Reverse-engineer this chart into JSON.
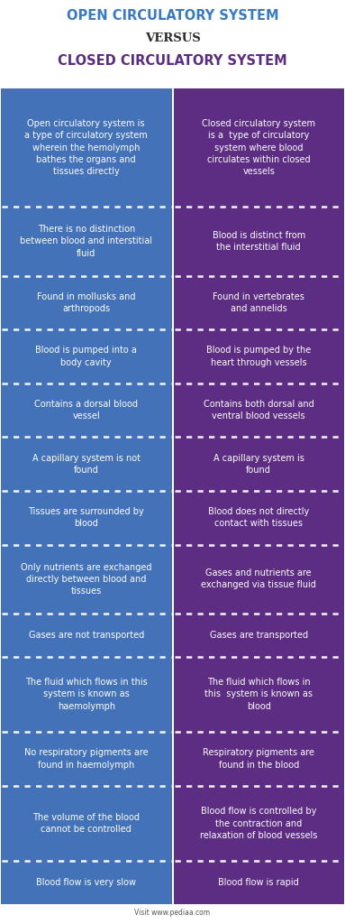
{
  "title_line1": "OPEN CIRCULATORY SYSTEM",
  "title_line2": "VERSUS",
  "title_line3": "CLOSED CIRCULATORY SYSTEM",
  "title_color1": "#3a7abf",
  "title_color2": "#2c2c2c",
  "title_color3": "#5b2d7e",
  "left_color": "#4472b8",
  "right_color": "#5c2d82",
  "text_color": "#ffffff",
  "background_color": "#ffffff",
  "footer_text": "Visit www.pediaa.com",
  "rows": [
    {
      "left": "Open circulatory system is\na type of circulatory system\nwherein the hemolymph\nbathes the organs and\ntissues directly",
      "right": "Closed circulatory system\nis a  type of circulatory\nsystem where blood\ncirculates within closed\nvessels"
    },
    {
      "left": "There is no distinction\nbetween blood and interstitial\nfluid",
      "right": "Blood is distinct from\nthe interstitial fluid"
    },
    {
      "left": "Found in mollusks and\narthropods",
      "right": "Found in vertebrates\nand annelids"
    },
    {
      "left": "Blood is pumped into a\nbody cavity",
      "right": "Blood is pumped by the\nheart through vessels"
    },
    {
      "left": "Contains a dorsal blood\nvessel",
      "right": "Contains both dorsal and\nventral blood vessels"
    },
    {
      "left": "A capillary system is not\nfound",
      "right": "A capillary system is\nfound"
    },
    {
      "left": "Tissues are surrounded by\nblood",
      "right": "Blood does not directly\ncontact with tissues"
    },
    {
      "left": "Only nutrients are exchanged\ndirectly between blood and\ntissues",
      "right": "Gases and nutrients are\nexchanged via tissue fluid"
    },
    {
      "left": "Gases are not transported",
      "right": "Gases are transported"
    },
    {
      "left": "The fluid which flows in this\nsystem is known as\nhaemolymph",
      "right": "The fluid which flows in\nthis  system is known as\nblood"
    },
    {
      "left": "No respiratory pigments are\nfound in haemolymph",
      "right": "Respiratory pigments are\nfound in the blood"
    },
    {
      "left": "The volume of the blood\ncannot be controlled",
      "right": "Blood flow is controlled by\nthe contraction and\nrelaxation of blood vessels"
    },
    {
      "left": "Blood flow is very slow",
      "right": "Blood flow is rapid"
    }
  ],
  "row_weights": [
    5.5,
    3.2,
    2.5,
    2.5,
    2.5,
    2.5,
    2.5,
    3.2,
    2.0,
    3.5,
    2.5,
    3.5,
    2.0
  ]
}
